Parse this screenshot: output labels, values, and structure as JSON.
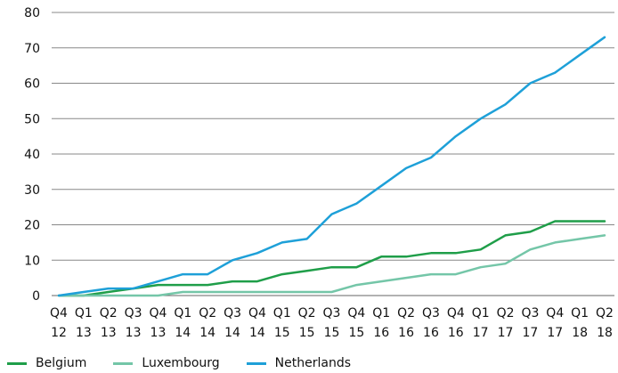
{
  "chart_data": {
    "type": "line",
    "title": "",
    "xlabel": "",
    "ylabel": "",
    "ylim": [
      0,
      80
    ],
    "yticks": [
      0,
      10,
      20,
      30,
      40,
      50,
      60,
      70,
      80
    ],
    "grid": "horizontal",
    "legend_position": "bottom-left",
    "categories": [
      [
        "Q4",
        "12"
      ],
      [
        "Q1",
        "13"
      ],
      [
        "Q2",
        "13"
      ],
      [
        "Q3",
        "13"
      ],
      [
        "Q4",
        "13"
      ],
      [
        "Q1",
        "14"
      ],
      [
        "Q2",
        "14"
      ],
      [
        "Q3",
        "14"
      ],
      [
        "Q4",
        "14"
      ],
      [
        "Q1",
        "15"
      ],
      [
        "Q2",
        "15"
      ],
      [
        "Q3",
        "15"
      ],
      [
        "Q4",
        "15"
      ],
      [
        "Q1",
        "16"
      ],
      [
        "Q2",
        "16"
      ],
      [
        "Q3",
        "16"
      ],
      [
        "Q4",
        "16"
      ],
      [
        "Q1",
        "17"
      ],
      [
        "Q2",
        "17"
      ],
      [
        "Q3",
        "17"
      ],
      [
        "Q4",
        "17"
      ],
      [
        "Q1",
        "18"
      ],
      [
        "Q2",
        "18"
      ]
    ],
    "series": [
      {
        "name": "Belgium",
        "color": "#1f9e49",
        "values": [
          0,
          0,
          1,
          2,
          3,
          3,
          3,
          4,
          4,
          6,
          7,
          8,
          8,
          11,
          11,
          12,
          12,
          13,
          17,
          18,
          21,
          21,
          21
        ]
      },
      {
        "name": "Luxembourg",
        "color": "#74c6a8",
        "values": [
          0,
          0,
          0,
          0,
          0,
          1,
          1,
          1,
          1,
          1,
          1,
          1,
          3,
          4,
          5,
          6,
          6,
          8,
          9,
          13,
          15,
          16,
          17
        ]
      },
      {
        "name": "Netherlands",
        "color": "#1ea0d8",
        "values": [
          0,
          1,
          2,
          2,
          4,
          6,
          6,
          10,
          12,
          15,
          16,
          23,
          26,
          31,
          36,
          39,
          45,
          50,
          54,
          60,
          63,
          68,
          73
        ]
      }
    ]
  }
}
